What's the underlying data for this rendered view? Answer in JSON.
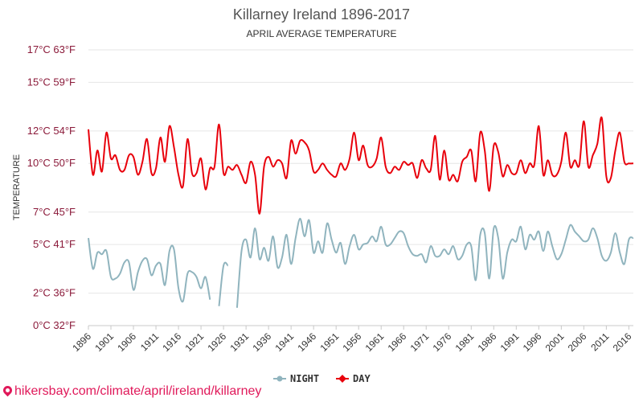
{
  "chart_data": {
    "type": "line",
    "title": "Killarney Ireland 1896-2017",
    "subtitle": "APRIL AVERAGE TEMPERATURE",
    "ylabel": "TEMPERATURE",
    "ylim": [
      0,
      17
    ],
    "yticks": [
      {
        "value": 0,
        "label": "0°C 32°F"
      },
      {
        "value": 2,
        "label": "2°C 36°F"
      },
      {
        "value": 5,
        "label": "5°C 41°F"
      },
      {
        "value": 7,
        "label": "7°C 45°F"
      },
      {
        "value": 10,
        "label": "10°C 50°F"
      },
      {
        "value": 12,
        "label": "12°C 54°F"
      },
      {
        "value": 15,
        "label": "15°C 59°F"
      },
      {
        "value": 17,
        "label": "17°C 63°F"
      }
    ],
    "xlim": [
      1896,
      2017
    ],
    "xticks": [
      "1896",
      "1901",
      "1906",
      "1911",
      "1916",
      "1921",
      "1926",
      "1931",
      "1936",
      "1941",
      "1946",
      "1951",
      "1956",
      "1961",
      "1966",
      "1971",
      "1976",
      "1981",
      "1986",
      "1991",
      "1996",
      "2001",
      "2006",
      "2011",
      "2016"
    ],
    "legend_position": "bottom-center",
    "grid": true,
    "series": [
      {
        "name": "NIGHT",
        "color": "#90b4be",
        "points": [
          [
            1896,
            5.4
          ],
          [
            1897,
            3.5
          ],
          [
            1898,
            4.5
          ],
          [
            1899,
            4.4
          ],
          [
            1900,
            4.6
          ],
          [
            1901,
            3.0
          ],
          [
            1902,
            2.9
          ],
          [
            1903,
            3.2
          ],
          [
            1904,
            3.9
          ],
          [
            1905,
            3.9
          ],
          [
            1906,
            2.2
          ],
          [
            1907,
            3.3
          ],
          [
            1908,
            4.0
          ],
          [
            1909,
            4.1
          ],
          [
            1910,
            3.1
          ],
          [
            1911,
            3.7
          ],
          [
            1912,
            3.8
          ],
          [
            1913,
            2.5
          ],
          [
            1914,
            4.6
          ],
          [
            1915,
            4.7
          ],
          [
            1916,
            2.3
          ],
          [
            1917,
            1.5
          ],
          [
            1918,
            3.2
          ],
          [
            1919,
            3.3
          ],
          [
            1920,
            3.0
          ],
          [
            1921,
            2.3
          ],
          [
            1922,
            3.0
          ],
          [
            1923,
            1.6
          ],
          [
            1925,
            1.2
          ],
          [
            1926,
            3.7
          ],
          [
            1927,
            3.7
          ],
          [
            1929,
            1.1
          ],
          [
            1930,
            4.6
          ],
          [
            1931,
            5.3
          ],
          [
            1932,
            4.2
          ],
          [
            1933,
            6.0
          ],
          [
            1934,
            4.1
          ],
          [
            1935,
            4.8
          ],
          [
            1936,
            4.0
          ],
          [
            1937,
            5.5
          ],
          [
            1938,
            3.6
          ],
          [
            1939,
            4.2
          ],
          [
            1940,
            5.6
          ],
          [
            1941,
            3.8
          ],
          [
            1942,
            5.4
          ],
          [
            1943,
            6.6
          ],
          [
            1944,
            5.5
          ],
          [
            1945,
            6.5
          ],
          [
            1946,
            4.5
          ],
          [
            1947,
            5.2
          ],
          [
            1948,
            4.5
          ],
          [
            1949,
            6.3
          ],
          [
            1950,
            5.3
          ],
          [
            1951,
            4.5
          ],
          [
            1952,
            5.1
          ],
          [
            1953,
            3.8
          ],
          [
            1954,
            4.9
          ],
          [
            1955,
            5.6
          ],
          [
            1956,
            4.7
          ],
          [
            1957,
            5.0
          ],
          [
            1958,
            5.1
          ],
          [
            1959,
            5.5
          ],
          [
            1960,
            5.2
          ],
          [
            1961,
            6.1
          ],
          [
            1962,
            5.0
          ],
          [
            1963,
            5.0
          ],
          [
            1964,
            5.4
          ],
          [
            1965,
            5.8
          ],
          [
            1966,
            5.7
          ],
          [
            1967,
            4.9
          ],
          [
            1968,
            4.4
          ],
          [
            1969,
            4.3
          ],
          [
            1970,
            4.4
          ],
          [
            1971,
            3.9
          ],
          [
            1972,
            4.9
          ],
          [
            1973,
            4.3
          ],
          [
            1974,
            4.3
          ],
          [
            1975,
            4.7
          ],
          [
            1976,
            4.4
          ],
          [
            1977,
            4.9
          ],
          [
            1978,
            4.1
          ],
          [
            1979,
            4.3
          ],
          [
            1980,
            5.0
          ],
          [
            1981,
            4.9
          ],
          [
            1982,
            2.8
          ],
          [
            1983,
            5.6
          ],
          [
            1984,
            5.7
          ],
          [
            1985,
            2.9
          ],
          [
            1986,
            6.0
          ],
          [
            1987,
            5.4
          ],
          [
            1988,
            2.9
          ],
          [
            1989,
            4.5
          ],
          [
            1990,
            5.3
          ],
          [
            1991,
            5.2
          ],
          [
            1992,
            6.1
          ],
          [
            1993,
            4.7
          ],
          [
            1994,
            5.6
          ],
          [
            1995,
            5.3
          ],
          [
            1996,
            5.8
          ],
          [
            1997,
            4.6
          ],
          [
            1998,
            5.8
          ],
          [
            1999,
            4.9
          ],
          [
            2000,
            4.1
          ],
          [
            2001,
            4.4
          ],
          [
            2002,
            5.3
          ],
          [
            2003,
            6.2
          ],
          [
            2004,
            5.8
          ],
          [
            2005,
            5.5
          ],
          [
            2006,
            5.2
          ],
          [
            2007,
            5.3
          ],
          [
            2008,
            6.0
          ],
          [
            2009,
            5.4
          ],
          [
            2010,
            4.3
          ],
          [
            2011,
            4.0
          ],
          [
            2012,
            4.5
          ],
          [
            2013,
            5.7
          ],
          [
            2014,
            4.5
          ],
          [
            2015,
            3.8
          ],
          [
            2016,
            5.3
          ],
          [
            2017,
            5.4
          ]
        ]
      },
      {
        "name": "DAY",
        "color": "#e8000b",
        "points": [
          [
            1896,
            12.1
          ],
          [
            1897,
            9.3
          ],
          [
            1898,
            10.8
          ],
          [
            1899,
            9.5
          ],
          [
            1900,
            11.9
          ],
          [
            1901,
            10.3
          ],
          [
            1902,
            10.5
          ],
          [
            1903,
            9.6
          ],
          [
            1904,
            9.6
          ],
          [
            1905,
            10.5
          ],
          [
            1906,
            10.4
          ],
          [
            1907,
            9.3
          ],
          [
            1908,
            10.1
          ],
          [
            1909,
            11.5
          ],
          [
            1910,
            9.4
          ],
          [
            1911,
            9.7
          ],
          [
            1912,
            11.6
          ],
          [
            1913,
            10.1
          ],
          [
            1914,
            12.3
          ],
          [
            1915,
            11.0
          ],
          [
            1916,
            9.3
          ],
          [
            1917,
            8.6
          ],
          [
            1918,
            11.5
          ],
          [
            1919,
            9.4
          ],
          [
            1920,
            9.4
          ],
          [
            1921,
            10.3
          ],
          [
            1922,
            8.4
          ],
          [
            1923,
            9.7
          ],
          [
            1924,
            9.8
          ],
          [
            1925,
            12.4
          ],
          [
            1926,
            9.4
          ],
          [
            1927,
            9.8
          ],
          [
            1928,
            9.6
          ],
          [
            1929,
            9.9
          ],
          [
            1930,
            9.3
          ],
          [
            1931,
            8.8
          ],
          [
            1932,
            10.1
          ],
          [
            1933,
            9.3
          ],
          [
            1934,
            6.9
          ],
          [
            1935,
            9.8
          ],
          [
            1936,
            10.4
          ],
          [
            1937,
            9.8
          ],
          [
            1938,
            10.2
          ],
          [
            1939,
            10.0
          ],
          [
            1940,
            9.1
          ],
          [
            1941,
            11.4
          ],
          [
            1942,
            10.6
          ],
          [
            1943,
            11.4
          ],
          [
            1944,
            11.3
          ],
          [
            1945,
            10.8
          ],
          [
            1946,
            9.5
          ],
          [
            1947,
            9.6
          ],
          [
            1948,
            10.0
          ],
          [
            1949,
            9.6
          ],
          [
            1950,
            9.3
          ],
          [
            1951,
            9.2
          ],
          [
            1952,
            10.0
          ],
          [
            1953,
            9.6
          ],
          [
            1954,
            10.3
          ],
          [
            1955,
            11.9
          ],
          [
            1956,
            10.2
          ],
          [
            1957,
            11.1
          ],
          [
            1958,
            9.9
          ],
          [
            1959,
            9.8
          ],
          [
            1960,
            10.3
          ],
          [
            1961,
            11.6
          ],
          [
            1962,
            9.8
          ],
          [
            1963,
            9.4
          ],
          [
            1964,
            9.8
          ],
          [
            1965,
            9.6
          ],
          [
            1966,
            10.1
          ],
          [
            1967,
            9.9
          ],
          [
            1968,
            10.0
          ],
          [
            1969,
            9.1
          ],
          [
            1970,
            10.2
          ],
          [
            1971,
            9.7
          ],
          [
            1972,
            9.6
          ],
          [
            1973,
            11.7
          ],
          [
            1974,
            9.0
          ],
          [
            1975,
            10.8
          ],
          [
            1976,
            9.0
          ],
          [
            1977,
            9.3
          ],
          [
            1978,
            8.9
          ],
          [
            1979,
            10.1
          ],
          [
            1980,
            10.4
          ],
          [
            1981,
            10.8
          ],
          [
            1982,
            8.9
          ],
          [
            1983,
            11.9
          ],
          [
            1984,
            10.8
          ],
          [
            1985,
            8.3
          ],
          [
            1986,
            11.1
          ],
          [
            1987,
            10.7
          ],
          [
            1988,
            9.2
          ],
          [
            1989,
            9.9
          ],
          [
            1990,
            9.4
          ],
          [
            1991,
            9.4
          ],
          [
            1992,
            10.2
          ],
          [
            1993,
            9.4
          ],
          [
            1994,
            10.0
          ],
          [
            1995,
            9.9
          ],
          [
            1996,
            12.3
          ],
          [
            1997,
            9.3
          ],
          [
            1998,
            10.2
          ],
          [
            1999,
            9.3
          ],
          [
            2000,
            9.3
          ],
          [
            2001,
            10.1
          ],
          [
            2002,
            11.9
          ],
          [
            2003,
            9.8
          ],
          [
            2004,
            10.2
          ],
          [
            2005,
            9.9
          ],
          [
            2006,
            12.6
          ],
          [
            2007,
            9.8
          ],
          [
            2008,
            10.5
          ],
          [
            2009,
            11.2
          ],
          [
            2010,
            12.8
          ],
          [
            2011,
            9.2
          ],
          [
            2012,
            9.1
          ],
          [
            2013,
            10.8
          ],
          [
            2014,
            11.9
          ],
          [
            2015,
            10.1
          ],
          [
            2016,
            10.0
          ],
          [
            2017,
            10.0
          ]
        ]
      }
    ]
  },
  "watermark": "hikersbay.com/climate/april/ireland/killarney"
}
